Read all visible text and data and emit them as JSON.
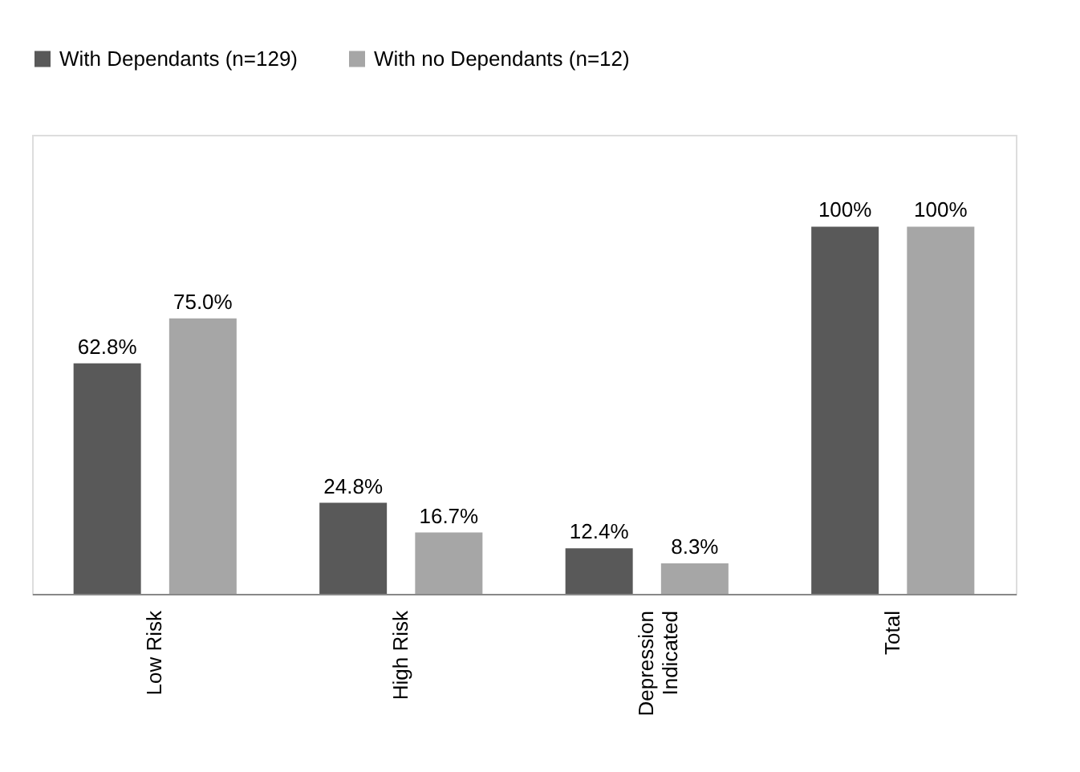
{
  "chart_data": {
    "type": "bar",
    "categories": [
      "Low Risk",
      "High Risk",
      "Depression Indicated",
      "Total"
    ],
    "series": [
      {
        "name": "With Dependants (n=129)",
        "color": "#595959",
        "values": [
          62.8,
          24.8,
          12.4,
          100
        ],
        "value_labels": [
          "62.8%",
          "24.8%",
          "12.4%",
          "100%"
        ]
      },
      {
        "name": "With no  Dependants (n=12)",
        "color": "#a6a6a6",
        "values": [
          75.0,
          16.7,
          8.3,
          100
        ],
        "value_labels": [
          "75.0%",
          "16.7%",
          "8.3%",
          "100%"
        ]
      }
    ],
    "ylim": [
      0,
      125
    ],
    "tick_labels": "x",
    "grid": false,
    "legend": "top"
  }
}
